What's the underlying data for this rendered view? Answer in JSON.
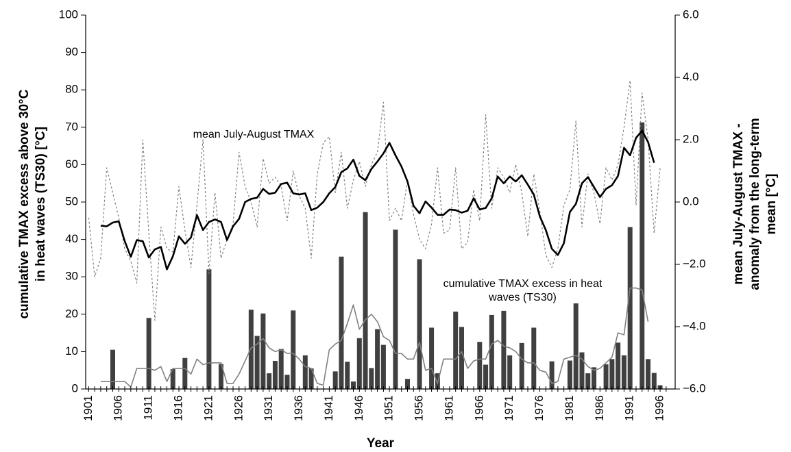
{
  "chart_data": {
    "type": "bar",
    "xlabel": "Year",
    "ylabel": "cumulative TMAX excess above 30°C in heat waves (TS30) [°C]",
    "y2label": "mean July-August TMAX - anomaly from the long-term mean [°C]",
    "annotations": [
      "mean July-August TMAX",
      "cumulative TMAX excess in heat waves (TS30)"
    ],
    "x": [
      1901,
      1902,
      1903,
      1904,
      1905,
      1906,
      1907,
      1908,
      1909,
      1910,
      1911,
      1912,
      1913,
      1914,
      1915,
      1916,
      1917,
      1918,
      1919,
      1920,
      1921,
      1922,
      1923,
      1924,
      1925,
      1926,
      1927,
      1928,
      1929,
      1930,
      1931,
      1932,
      1933,
      1934,
      1935,
      1936,
      1937,
      1938,
      1939,
      1940,
      1941,
      1942,
      1943,
      1944,
      1945,
      1946,
      1947,
      1948,
      1949,
      1950,
      1951,
      1952,
      1953,
      1954,
      1955,
      1956,
      1957,
      1958,
      1959,
      1960,
      1961,
      1962,
      1963,
      1964,
      1965,
      1966,
      1967,
      1968,
      1969,
      1970,
      1971,
      1972,
      1973,
      1974,
      1975,
      1976,
      1977,
      1978,
      1979,
      1980,
      1981,
      1982,
      1983,
      1984,
      1985,
      1986,
      1987,
      1988,
      1989,
      1990,
      1991,
      1992,
      1993,
      1994,
      1995,
      1996,
      1997
    ],
    "xlim": [
      1900.5,
      1998.5
    ],
    "xticks": [
      1901,
      1906,
      1911,
      1916,
      1921,
      1926,
      1931,
      1936,
      1941,
      1946,
      1951,
      1956,
      1961,
      1966,
      1971,
      1976,
      1981,
      1986,
      1991,
      1996
    ],
    "ylim": [
      0,
      100
    ],
    "yticks": [
      0,
      10,
      20,
      30,
      40,
      50,
      60,
      70,
      80,
      90,
      100
    ],
    "y2lim": [
      -6,
      6
    ],
    "y2ticks": [
      {
        "value": 6,
        "label": "6.0"
      },
      {
        "value": 4,
        "label": "4.0"
      },
      {
        "value": 2,
        "label": "2.0"
      },
      {
        "value": 0,
        "label": "0.0"
      },
      {
        "value": -2,
        "label": "−2.0"
      },
      {
        "value": -4,
        "label": "−4.0"
      },
      {
        "value": -6,
        "label": "−6.0"
      }
    ],
    "series": [
      {
        "type": "bar",
        "color": "#404040",
        "values": [
          0,
          0,
          0,
          0,
          10.5,
          0,
          0,
          0,
          0,
          0,
          19,
          0,
          0,
          0,
          5.3,
          0,
          8.3,
          0,
          0,
          0,
          32,
          0,
          6.7,
          0,
          0,
          0,
          0,
          21.2,
          14.2,
          20.2,
          4.2,
          7.5,
          10.7,
          3.8,
          21,
          0,
          9,
          5.5,
          0,
          0,
          0,
          4.7,
          35.4,
          7.3,
          2,
          13.6,
          47.3,
          5.6,
          16,
          11.8,
          0,
          42.6,
          0,
          2.7,
          0,
          34.7,
          0,
          16.4,
          4.2,
          0,
          0,
          20.7,
          16.6,
          0,
          0,
          12.6,
          6.5,
          19.8,
          0,
          20.9,
          9,
          0,
          12.3,
          0,
          16.4,
          0,
          0,
          7.4,
          0,
          0,
          7.6,
          22.9,
          9.8,
          4.2,
          5.8,
          0,
          6.6,
          8,
          12.4,
          9,
          43.3,
          0,
          71.3,
          8,
          4.3,
          1,
          0
        ]
      },
      {
        "type": "line",
        "color": "#808080",
        "width": 1.6,
        "values": [
          null,
          null,
          2,
          2,
          2,
          2,
          2,
          0.5,
          5.5,
          5.5,
          5.5,
          5,
          6,
          2,
          5.5,
          5.5,
          5.5,
          4,
          8,
          6.5,
          7,
          7,
          7,
          1.5,
          1.5,
          4,
          7.5,
          11,
          12,
          13.5,
          11,
          10,
          10.5,
          9.5,
          9.5,
          8,
          6,
          5.5,
          1.5,
          1,
          10.5,
          12,
          13,
          17.5,
          22.5,
          16,
          18.5,
          20,
          18,
          14,
          13,
          9.5,
          9.5,
          8,
          8,
          12.5,
          5,
          5.5,
          1.5,
          8,
          8,
          8,
          10,
          5.5,
          7.5,
          8,
          8,
          12,
          13,
          11.5,
          11,
          10,
          8,
          7,
          7,
          5,
          4.5,
          1.5,
          2,
          8,
          8.5,
          9,
          8,
          6,
          5,
          5.5,
          7,
          8.5,
          15,
          14.5,
          27,
          27,
          26.5,
          18,
          null,
          null,
          null
        ]
      },
      {
        "type": "line",
        "axis": "y2",
        "color": "#808080",
        "width": 1.2,
        "dash": "3,3",
        "values": [
          -0.5,
          -2.4,
          -1.8,
          1.1,
          0.3,
          -0.5,
          -1.5,
          -1.9,
          -2.6,
          2.0,
          -1.0,
          -3.8,
          -0.8,
          -1.5,
          -1.6,
          0.5,
          -0.9,
          -2.1,
          -0.1,
          2.0,
          -2.3,
          0.3,
          -1.8,
          -1.2,
          -0.7,
          1.6,
          0.5,
          0,
          -0.8,
          1.4,
          0.6,
          0.8,
          0.5,
          -0.6,
          1.0,
          0.2,
          -0.2,
          -1.8,
          0.9,
          1.9,
          2.1,
          0.3,
          1.6,
          -0.2,
          0.7,
          1.3,
          0.5,
          1.2,
          1.6,
          3.2,
          -0.6,
          -0.2,
          -0.6,
          0.7,
          -0.4,
          -1.2,
          -1.5,
          -0.7,
          1.1,
          -1.0,
          -0.9,
          1.1,
          -1.5,
          -1.3,
          0.4,
          -0.6,
          2.8,
          -0.2,
          1.1,
          0.8,
          0.3,
          1.2,
          0.3,
          -1.1,
          0.9,
          -0.3,
          -1.7,
          -2.1,
          -1.5,
          -0.1,
          0.4,
          2.6,
          -0.8,
          0.9,
          0.3,
          -0.7,
          1.1,
          0.7,
          1.2,
          2.4,
          3.9,
          -0.1,
          3.5,
          2.0,
          -1.0,
          1.1,
          null
        ]
      },
      {
        "type": "line",
        "axis": "y2",
        "color": "#000000",
        "width": 2.6,
        "values": [
          null,
          null,
          -0.76,
          -0.78,
          -0.66,
          -0.62,
          -1.26,
          -1.76,
          -1.22,
          -1.26,
          -1.78,
          -1.52,
          -1.44,
          -2.16,
          -1.74,
          -1.1,
          -1.34,
          -1.14,
          -0.42,
          -0.9,
          -0.64,
          -0.56,
          -0.64,
          -1.22,
          -0.78,
          -0.54,
          0,
          0.1,
          0.14,
          0.42,
          0.26,
          0.3,
          0.58,
          0.62,
          0.28,
          0.24,
          0.28,
          -0.26,
          -0.18,
          0,
          0.28,
          0.48,
          0.96,
          1.08,
          1.36,
          0.84,
          0.7,
          1.06,
          1.3,
          1.56,
          1.9,
          1.5,
          1.14,
          0.66,
          -0.12,
          -0.36,
          0.02,
          -0.18,
          -0.41,
          -0.41,
          -0.24,
          -0.26,
          -0.34,
          -0.28,
          0.12,
          -0.24,
          -0.19,
          0.12,
          0.82,
          0.6,
          0.82,
          0.66,
          0.86,
          0.56,
          0.24,
          -0.46,
          -0.9,
          -1.5,
          -1.7,
          -1.32,
          -0.32,
          -0.06,
          0.6,
          0.8,
          0.48,
          0.16,
          0.42,
          0.54,
          0.84,
          1.74,
          1.5,
          2.06,
          2.29,
          1.92,
          1.26,
          null,
          null
        ]
      }
    ]
  }
}
